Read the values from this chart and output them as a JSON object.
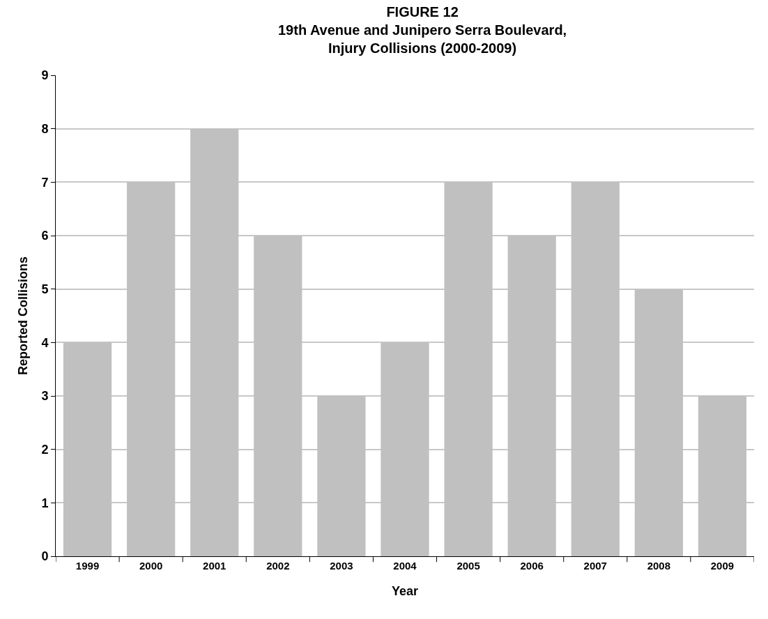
{
  "chart_data": {
    "type": "bar",
    "title": "FIGURE 12\n19th Avenue and Junipero Serra Boulevard,\nInjury Collisions (2000-2009)",
    "xlabel": "Year",
    "ylabel": "Reported Collisions",
    "categories": [
      "1999",
      "2000",
      "2001",
      "2002",
      "2003",
      "2004",
      "2005",
      "2006",
      "2007",
      "2008",
      "2009"
    ],
    "values": [
      4,
      7,
      8,
      6,
      3,
      4,
      7,
      6,
      7,
      5,
      3
    ],
    "color": "#c0c0c0",
    "ylim": [
      0,
      9
    ],
    "yticks": [
      0,
      1,
      2,
      3,
      4,
      5,
      6,
      7,
      8,
      9
    ],
    "grid": "y",
    "legend": false
  }
}
